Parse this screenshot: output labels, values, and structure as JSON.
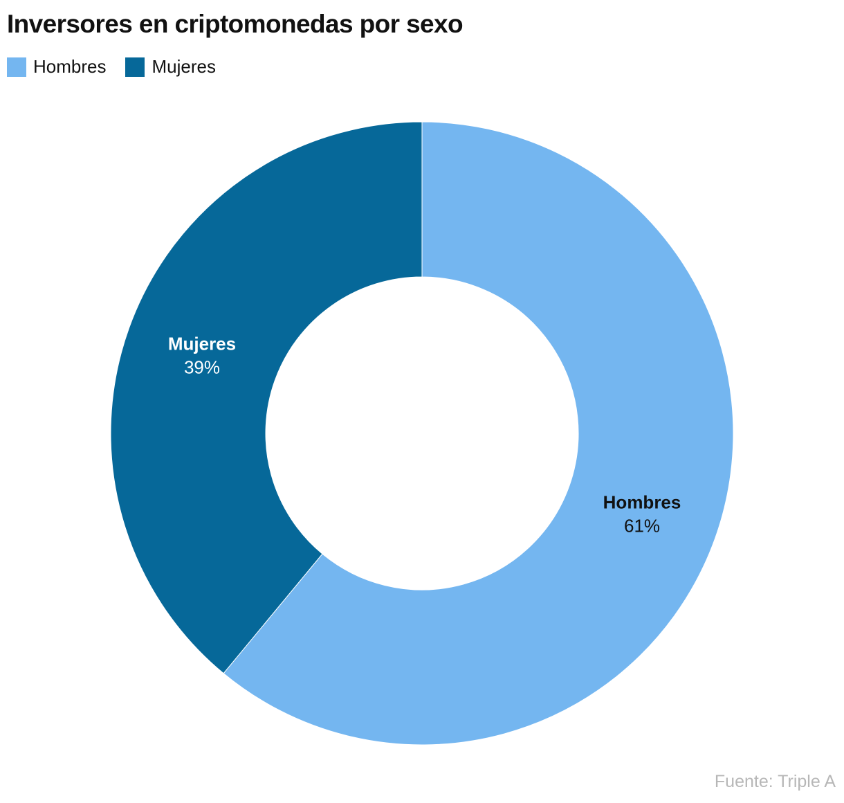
{
  "chart_data": {
    "type": "pie",
    "donut": true,
    "title": "Inversores en criptomonedas por sexo",
    "legend_position": "top-left",
    "slices": [
      {
        "label": "Hombres",
        "value": 61,
        "value_label": "61%",
        "color": "#74b6f0",
        "label_color": "#111111"
      },
      {
        "label": "Mujeres",
        "value": 39,
        "value_label": "39%",
        "color": "#066899",
        "label_color": "#ffffff"
      }
    ],
    "source": "Fuente: Triple A"
  }
}
